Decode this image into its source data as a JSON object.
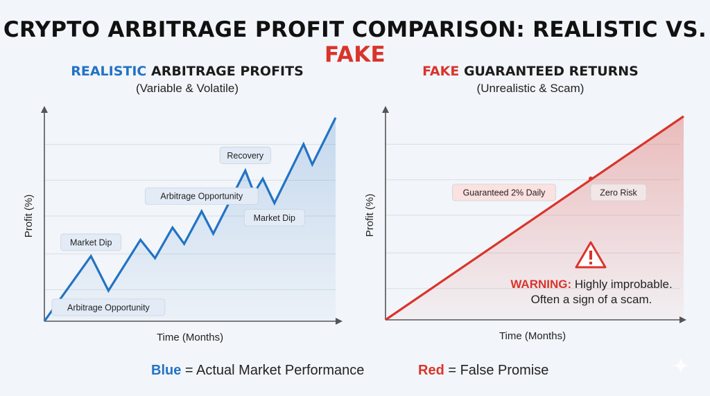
{
  "title": {
    "prefix": "CRYPTO ARBITRAGE PROFIT COMPARISON: REALISTIC VS. ",
    "highlight": "FAKE"
  },
  "colors": {
    "blue": "#2273c4",
    "red": "#d9342b",
    "annotation_blue_bg": "#e3ecf6",
    "annotation_red_bg": "#fbe1df"
  },
  "chart_data": [
    {
      "type": "line",
      "title_highlight": "REALISTIC",
      "title_rest": " ARBITRAGE PROFITS",
      "subtitle": "(Variable & Volatile)",
      "xlabel": "Time (Months)",
      "ylabel": "Profit (%)",
      "xlim": [
        0,
        100
      ],
      "ylim": [
        0,
        100
      ],
      "grid": true,
      "series": [
        {
          "color": "#2273c4",
          "x": [
            0,
            16,
            22,
            33,
            38,
            44,
            48,
            54,
            58,
            69,
            72,
            75,
            79,
            89,
            92,
            100
          ],
          "y": [
            0,
            32,
            15,
            40,
            31,
            46,
            38,
            54,
            43,
            74,
            63,
            70,
            58,
            87,
            77,
            100
          ]
        }
      ],
      "annotations": [
        {
          "text": "Market Dip",
          "x": 16,
          "y": 32
        },
        {
          "text": "Arbitrage Opportunity",
          "x": 22,
          "y": 15
        },
        {
          "text": "Arbitrage Opportunity",
          "x": 54,
          "y": 54
        },
        {
          "text": "Recovery",
          "x": 69,
          "y": 74
        },
        {
          "text": "Market Dip",
          "x": 79,
          "y": 58
        }
      ]
    },
    {
      "type": "line",
      "title_highlight": "FAKE",
      "title_rest": " GUARANTEED RETURNS",
      "subtitle": "(Unrealistic & Scam)",
      "xlabel": "Time (Months)",
      "ylabel": "Profit (%)",
      "xlim": [
        0,
        100
      ],
      "ylim": [
        0,
        100
      ],
      "grid": true,
      "series": [
        {
          "color": "#d9342b",
          "x": [
            0,
            100
          ],
          "y": [
            0,
            100
          ]
        }
      ],
      "annotations": [
        {
          "text": "Guaranteed 2% Daily"
        },
        {
          "text": "Zero Risk"
        }
      ],
      "warning": {
        "icon": "warning-triangle-icon",
        "label": "WARNING:",
        "line1": " Highly improbable.",
        "line2": "Often a sign of a scam."
      }
    }
  ],
  "legend": [
    {
      "key": "Blue",
      "text": " = Actual Market Performance"
    },
    {
      "key": "Red",
      "text": " = False Promise"
    }
  ]
}
